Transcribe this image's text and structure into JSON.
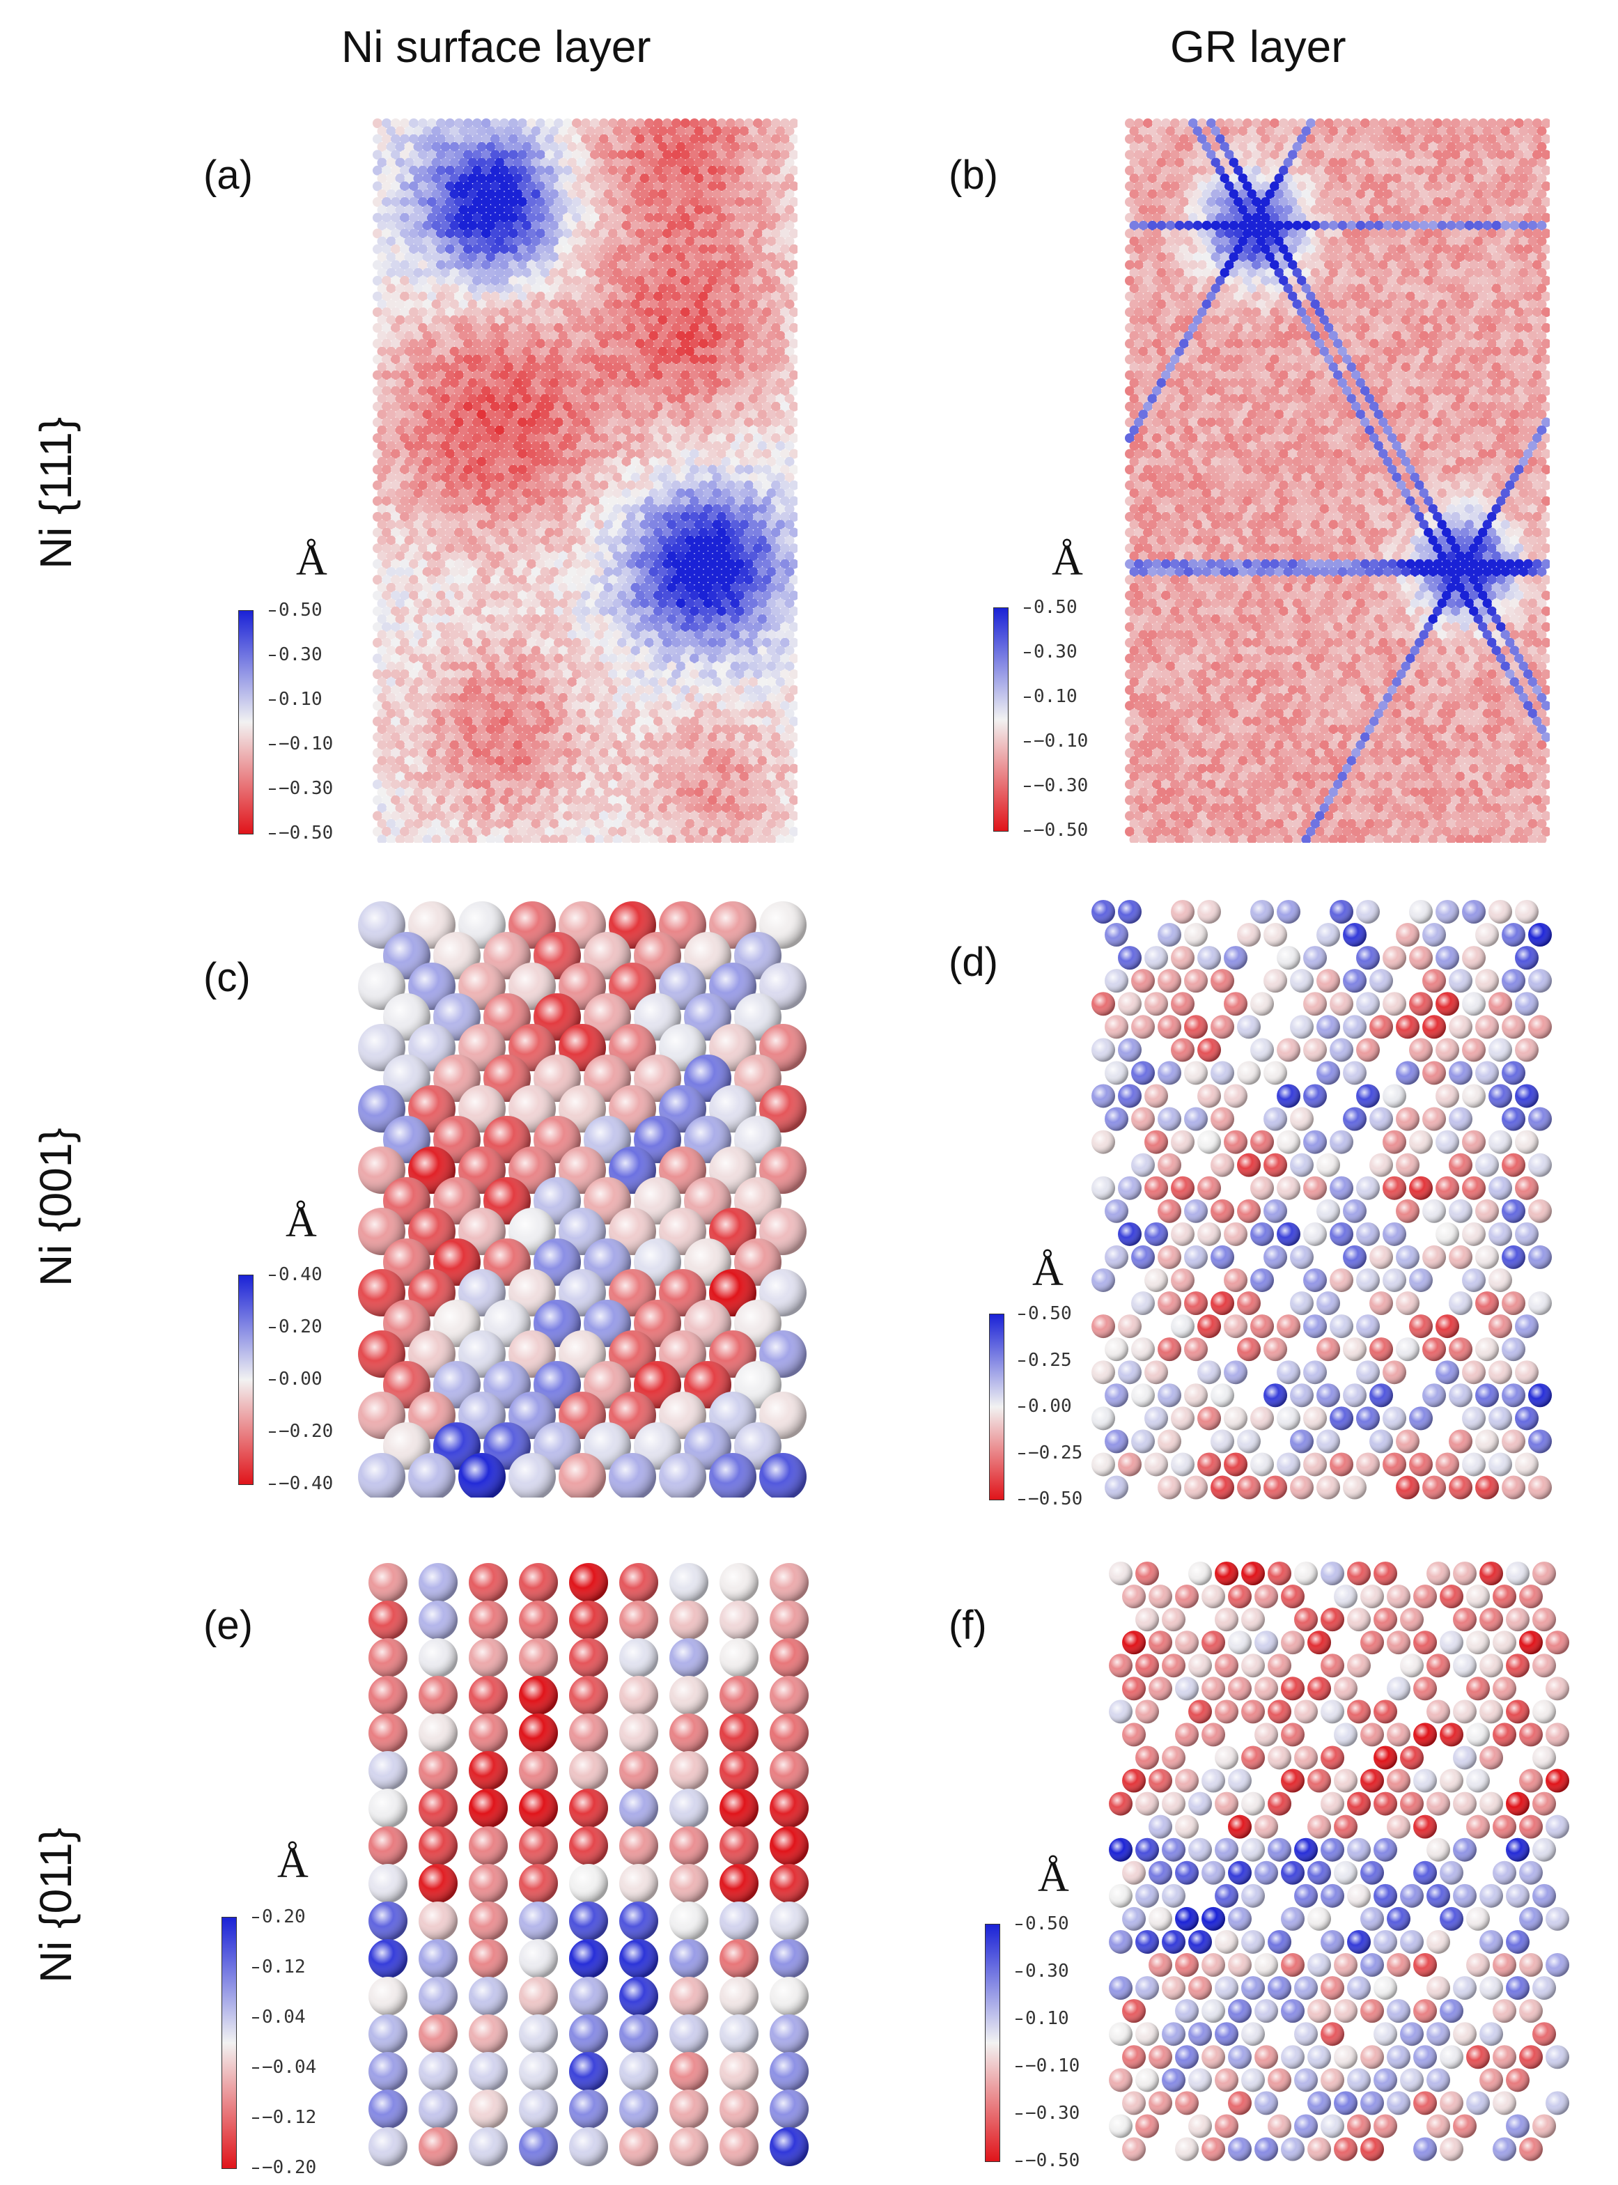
{
  "column_titles": [
    "Ni surface layer",
    "GR layer"
  ],
  "row_titles": [
    "Ni {111}",
    "Ni {001}",
    "Ni {011}"
  ],
  "panels": [
    {
      "label": "(a)",
      "unit": "Å",
      "ticks": [
        "0.50",
        "0.30",
        "0.10",
        "−0.10",
        "−0.30",
        "−0.50"
      ]
    },
    {
      "label": "(b)",
      "unit": "Å",
      "ticks": [
        "0.50",
        "0.30",
        "0.10",
        "−0.10",
        "−0.30",
        "−0.50"
      ]
    },
    {
      "label": "(c)",
      "unit": "Å",
      "ticks": [
        "0.40",
        "0.20",
        "0.00",
        "−0.20",
        "−0.40"
      ]
    },
    {
      "label": "(d)",
      "unit": "Å",
      "ticks": [
        "0.50",
        "0.25",
        "0.00",
        "−0.25",
        "−0.50"
      ]
    },
    {
      "label": "(e)",
      "unit": "Å",
      "ticks": [
        "0.20",
        "0.12",
        "0.04",
        "−0.04",
        "−0.12",
        "−0.20"
      ]
    },
    {
      "label": "(f)",
      "unit": "Å",
      "ticks": [
        "0.50",
        "0.30",
        "0.10",
        "−0.10",
        "−0.30",
        "−0.50"
      ]
    }
  ],
  "colors": {
    "positive": "#1a22d6",
    "zero": "#f2f2f2",
    "negative": "#e0141a"
  }
}
